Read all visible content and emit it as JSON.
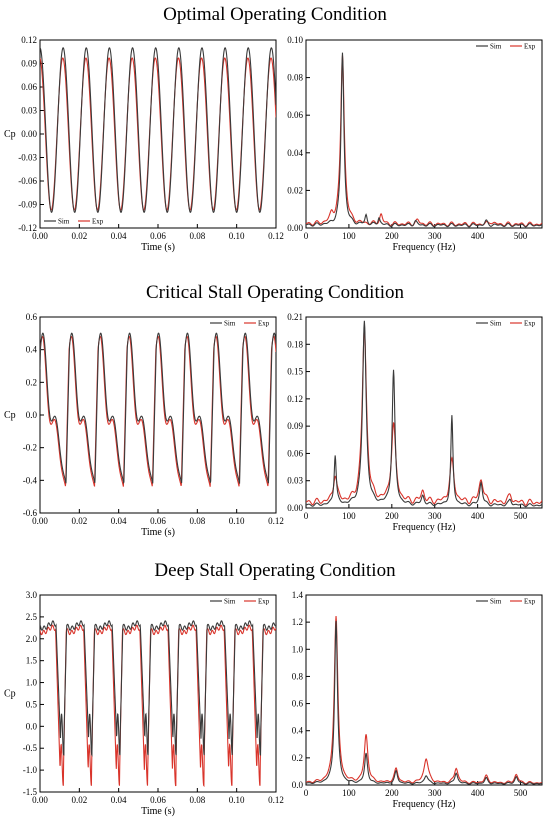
{
  "sections": [
    {
      "title": "Optimal Operating Condition"
    },
    {
      "title": "Critical Stall Operating Condition"
    },
    {
      "title": "Deep Stall Operating Condition"
    }
  ],
  "colors": {
    "sim": "#3a3a3a",
    "exp": "#d9342b"
  },
  "chart_data": [
    {
      "id": "optimal-time",
      "type": "line",
      "xlabel": "Time (s)",
      "ylabel": "Cp",
      "xlim": [
        0,
        0.12
      ],
      "ylim": [
        -0.12,
        0.12
      ],
      "xticks": [
        0.0,
        0.02,
        0.04,
        0.06,
        0.08,
        0.1,
        0.12
      ],
      "yticks": [
        -0.12,
        -0.09,
        -0.06,
        -0.03,
        0.0,
        0.03,
        0.06,
        0.09,
        0.12
      ],
      "xdec": 2,
      "ydec": 2,
      "legend": "bottom-left",
      "signal": {
        "freq": 85,
        "phase": 0.25,
        "kind": "sine"
      },
      "series": [
        {
          "name": "Sim",
          "amp": 0.105,
          "offset": 0.005,
          "color": "#3a3a3a"
        },
        {
          "name": "Exp",
          "amp": 0.097,
          "offset": 0.0,
          "color": "#d9342b"
        }
      ]
    },
    {
      "id": "optimal-fft",
      "type": "line",
      "xlabel": "Frequency (Hz)",
      "ylabel": "",
      "xlim": [
        0,
        550
      ],
      "ylim": [
        0,
        0.1
      ],
      "xticks": [
        0,
        100,
        200,
        300,
        400,
        500
      ],
      "yticks": [
        0.0,
        0.02,
        0.04,
        0.06,
        0.08,
        0.1
      ],
      "xdec": 0,
      "ydec": 2,
      "legend": "top-right",
      "series": [
        {
          "name": "Sim",
          "color": "#3a3a3a",
          "floor": 0.0015,
          "peaks": [
            [
              85,
              0.092,
              4
            ],
            [
              140,
              0.005,
              3
            ],
            [
              170,
              0.004,
              3
            ],
            [
              255,
              0.002,
              4
            ],
            [
              420,
              0.002,
              4
            ]
          ]
        },
        {
          "name": "Exp",
          "color": "#d9342b",
          "floor": 0.002,
          "peaks": [
            [
              85,
              0.09,
              5
            ],
            [
              60,
              0.004,
              5
            ],
            [
              175,
              0.005,
              4
            ],
            [
              260,
              0.002,
              5
            ],
            [
              430,
              0.0015,
              5
            ]
          ]
        }
      ]
    },
    {
      "id": "critical-time",
      "type": "line",
      "xlabel": "Time (s)",
      "ylabel": "Cp",
      "xlim": [
        0,
        0.12
      ],
      "ylim": [
        -0.6,
        0.6
      ],
      "xticks": [
        0.0,
        0.02,
        0.04,
        0.06,
        0.08,
        0.1,
        0.12
      ],
      "yticks": [
        -0.6,
        -0.4,
        -0.2,
        0.0,
        0.2,
        0.4,
        0.6
      ],
      "xdec": 2,
      "ydec": 1,
      "legend": "top-right",
      "signal": {
        "freq": 68,
        "phase": 0.1,
        "kind": "stall"
      },
      "series": [
        {
          "name": "Sim",
          "hi": 0.42,
          "lo": -0.42,
          "color": "#3a3a3a"
        },
        {
          "name": "Exp",
          "hi": 0.4,
          "lo": -0.44,
          "color": "#d9342b"
        }
      ]
    },
    {
      "id": "critical-fft",
      "type": "line",
      "xlabel": "Frequency (Hz)",
      "ylabel": "",
      "xlim": [
        0,
        550
      ],
      "ylim": [
        0,
        0.21
      ],
      "xticks": [
        0,
        100,
        200,
        300,
        400,
        500
      ],
      "yticks": [
        0.0,
        0.03,
        0.06,
        0.09,
        0.12,
        0.15,
        0.18,
        0.21
      ],
      "xdec": 0,
      "ydec": 2,
      "legend": "top-right",
      "series": [
        {
          "name": "Sim",
          "color": "#3a3a3a",
          "floor": 0.003,
          "peaks": [
            [
              68,
              0.055,
              3
            ],
            [
              136,
              0.202,
              5
            ],
            [
              204,
              0.147,
              4
            ],
            [
              272,
              0.01,
              4
            ],
            [
              340,
              0.097,
              3
            ],
            [
              408,
              0.025,
              4
            ],
            [
              476,
              0.006,
              4
            ]
          ]
        },
        {
          "name": "Exp",
          "color": "#d9342b",
          "floor": 0.006,
          "peaks": [
            [
              68,
              0.03,
              5
            ],
            [
              136,
              0.19,
              6
            ],
            [
              204,
              0.085,
              6
            ],
            [
              272,
              0.012,
              5
            ],
            [
              340,
              0.045,
              6
            ],
            [
              408,
              0.025,
              6
            ],
            [
              476,
              0.008,
              5
            ]
          ]
        }
      ]
    },
    {
      "id": "deep-time",
      "type": "line",
      "xlabel": "Time (s)",
      "ylabel": "Cp",
      "xlim": [
        0,
        0.12
      ],
      "ylim": [
        -1.5,
        3.0
      ],
      "xticks": [
        0.0,
        0.02,
        0.04,
        0.06,
        0.08,
        0.1,
        0.12
      ],
      "yticks": [
        -1.5,
        -1.0,
        -0.5,
        0.0,
        0.5,
        1.0,
        1.5,
        2.0,
        2.5,
        3.0
      ],
      "xdec": 2,
      "ydec": 1,
      "legend": "top-right",
      "signal": {
        "freq": 70,
        "phase": 0.05,
        "kind": "deep"
      },
      "series": [
        {
          "name": "Sim",
          "hi": 2.3,
          "lo": -0.3,
          "color": "#3a3a3a"
        },
        {
          "name": "Exp",
          "hi": 2.2,
          "lo": -1.0,
          "color": "#d9342b"
        }
      ]
    },
    {
      "id": "deep-fft",
      "type": "line",
      "xlabel": "Frequency (Hz)",
      "ylabel": "",
      "xlim": [
        0,
        550
      ],
      "ylim": [
        0,
        1.4
      ],
      "xticks": [
        0,
        100,
        200,
        300,
        400,
        500
      ],
      "yticks": [
        0.0,
        0.2,
        0.4,
        0.6,
        0.8,
        1.0,
        1.2,
        1.4
      ],
      "xdec": 0,
      "ydec": 1,
      "legend": "top-right",
      "series": [
        {
          "name": "Sim",
          "color": "#3a3a3a",
          "floor": 0.01,
          "peaks": [
            [
              70,
              1.2,
              4
            ],
            [
              140,
              0.22,
              4
            ],
            [
              210,
              0.09,
              4
            ],
            [
              280,
              0.06,
              5
            ],
            [
              350,
              0.08,
              4
            ],
            [
              420,
              0.04,
              4
            ],
            [
              490,
              0.05,
              4
            ]
          ]
        },
        {
          "name": "Exp",
          "color": "#d9342b",
          "floor": 0.015,
          "peaks": [
            [
              70,
              1.23,
              5
            ],
            [
              140,
              0.35,
              5
            ],
            [
              210,
              0.1,
              5
            ],
            [
              280,
              0.18,
              6
            ],
            [
              350,
              0.11,
              5
            ],
            [
              420,
              0.05,
              5
            ],
            [
              490,
              0.06,
              5
            ]
          ]
        }
      ]
    }
  ]
}
